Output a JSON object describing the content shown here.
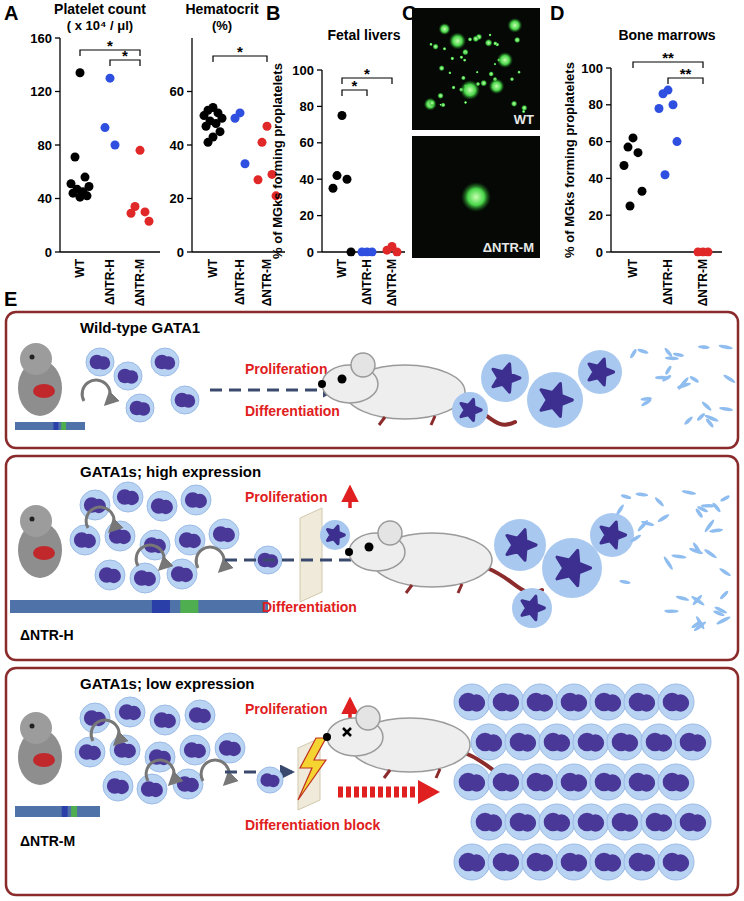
{
  "panel_labels": [
    "A",
    "B",
    "C",
    "D",
    "E"
  ],
  "chart_data": [
    {
      "type": "strip",
      "title": "Platelet count",
      "subtitle": "( x 10⁴ / μl)",
      "categories": [
        "WT",
        "ΔNTR-H",
        "ΔNTR-M"
      ],
      "values": [
        [
          134,
          71,
          56,
          51,
          49,
          47,
          45,
          44,
          42,
          41
        ],
        [
          130,
          93,
          80
        ],
        [
          76,
          34,
          30,
          29,
          23
        ]
      ],
      "colors": [
        "#000000",
        "#2f4fe0",
        "#e02828"
      ],
      "ylim": [
        0,
        160
      ],
      "yticks": [
        0,
        40,
        80,
        120,
        160
      ],
      "annotations": [
        {
          "between": [
            "ΔNTR-H",
            "ΔNTR-M"
          ],
          "label": "*"
        },
        {
          "between": [
            "WT",
            "ΔNTR-M"
          ],
          "label": "*"
        }
      ]
    },
    {
      "type": "strip",
      "title": "Hematocrit",
      "subtitle": "(%)",
      "categories": [
        "WT",
        "ΔNTR-H",
        "ΔNTR-M"
      ],
      "values": [
        [
          54,
          53,
          52,
          51,
          50,
          49,
          48,
          47,
          45,
          43,
          41
        ],
        [
          52,
          50,
          33
        ],
        [
          47,
          41,
          29,
          27,
          21
        ]
      ],
      "colors": [
        "#000000",
        "#2f4fe0",
        "#e02828"
      ],
      "ylim": [
        0,
        80
      ],
      "yticks": [
        0,
        20,
        40,
        60
      ],
      "annotations": [
        {
          "between": [
            "WT",
            "ΔNTR-M"
          ],
          "label": "*"
        }
      ]
    },
    {
      "type": "strip",
      "title": "Fetal livers",
      "y_label": "% of MGks forming proplatelets",
      "categories": [
        "WT",
        "ΔNTR-H",
        "ΔNTR-M"
      ],
      "values": [
        [
          75,
          42,
          40,
          35,
          0
        ],
        [
          0,
          0,
          0
        ],
        [
          3,
          1,
          0
        ]
      ],
      "colors": [
        "#000000",
        "#2f4fe0",
        "#e02828"
      ],
      "ylim": [
        0,
        100
      ],
      "yticks": [
        0,
        20,
        40,
        60,
        80,
        100
      ],
      "annotations": [
        {
          "between": [
            "WT",
            "ΔNTR-H"
          ],
          "label": "*"
        },
        {
          "between": [
            "WT",
            "ΔNTR-M"
          ],
          "label": "*"
        }
      ]
    },
    {
      "type": "strip",
      "title": "Bone marrows",
      "y_label": "% of MGks forming proplatelets",
      "categories": [
        "WT",
        "ΔNTR-H",
        "ΔNTR-M"
      ],
      "values": [
        [
          62,
          57,
          54,
          47,
          33,
          25
        ],
        [
          88,
          86,
          80,
          78,
          60,
          42
        ],
        [
          0,
          0,
          0
        ]
      ],
      "colors": [
        "#000000",
        "#2f4fe0",
        "#e02828"
      ],
      "ylim": [
        0,
        100
      ],
      "yticks": [
        0,
        20,
        40,
        60,
        80,
        100
      ],
      "annotations": [
        {
          "between": [
            "ΔNTR-H",
            "ΔNTR-M"
          ],
          "label": "**"
        },
        {
          "between": [
            "WT",
            "ΔNTR-M"
          ],
          "label": "**"
        }
      ]
    }
  ],
  "panel_c": {
    "images": [
      {
        "label": "WT"
      },
      {
        "label": "ΔNTR-M"
      }
    ]
  },
  "panel_e": {
    "rows": [
      {
        "title": "Wild-type GATA1",
        "proliferation": "Proliferation",
        "differentiation": "Differentiation"
      },
      {
        "title": "GATA1s; high expression",
        "strain": "ΔNTR-H",
        "proliferation": "Proliferation",
        "differentiation": "Differentiation"
      },
      {
        "title": "GATA1s; low expression",
        "strain": "ΔNTR-M",
        "proliferation": "Proliferation",
        "differentiation": "Differentiation block"
      }
    ]
  }
}
